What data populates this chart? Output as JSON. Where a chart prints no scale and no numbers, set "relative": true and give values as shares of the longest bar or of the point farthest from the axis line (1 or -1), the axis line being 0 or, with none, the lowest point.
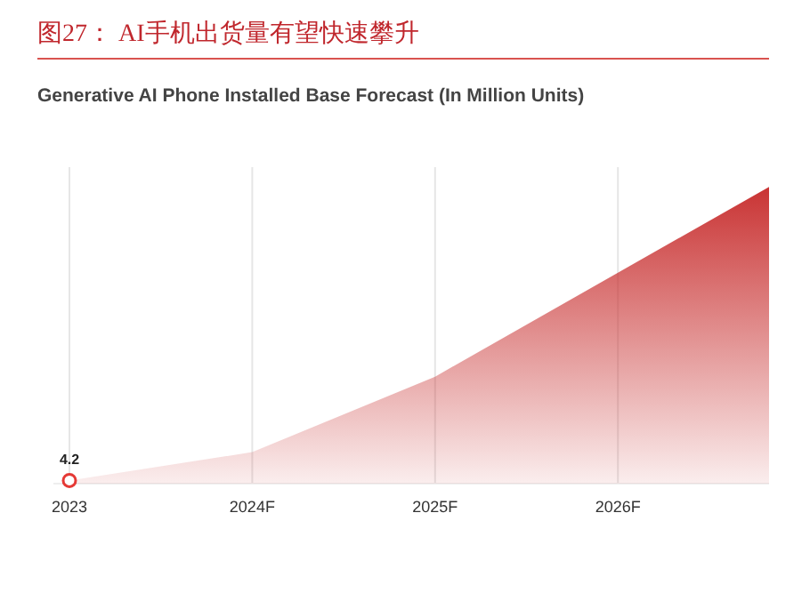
{
  "chart_data": {
    "type": "area",
    "title": "图27：  AI手机出货量有望快速攀升",
    "subtitle": "Generative AI Phone Installed Base Forecast (In Million Units)",
    "relative": true,
    "grid": "x",
    "categories": [
      "2023",
      "2024F",
      "2025F",
      "2026F",
      null
    ],
    "annotations": [
      {
        "text": "4.2",
        "x": "2023",
        "y": 0.01
      }
    ],
    "series": [
      {
        "color": "#c62828",
        "values": [
          0.01,
          0.1,
          0.34,
          0.67,
          1
        ]
      }
    ]
  }
}
